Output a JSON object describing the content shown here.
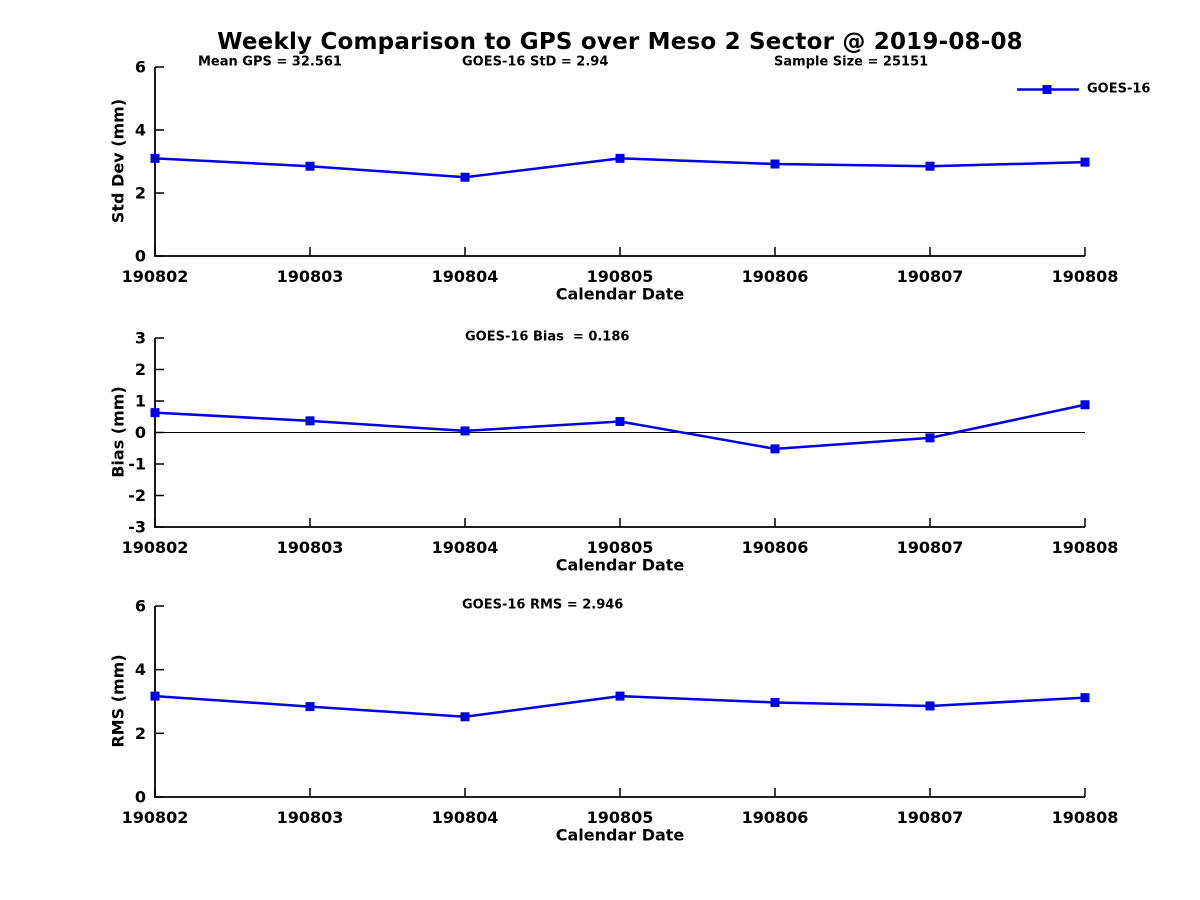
{
  "figure_title": "Weekly Comparison to GPS over Meso 2 Sector @ 2019-08-08",
  "colors": {
    "series_blue": "#0000e6",
    "axis_black": "#000000",
    "background": "#ffffff"
  },
  "legend": {
    "label": "GOES-16"
  },
  "chart_data": [
    {
      "type": "line",
      "annotations": [
        "Mean GPS = 32.561",
        "GOES-16 StD = 2.94",
        "Sample Size = 25151"
      ],
      "categories": [
        "190802",
        "190803",
        "190804",
        "190805",
        "190806",
        "190807",
        "190808"
      ],
      "series": [
        {
          "name": "GOES-16",
          "values": [
            3.1,
            2.85,
            2.5,
            3.1,
            2.92,
            2.85,
            2.98
          ]
        }
      ],
      "xlabel": "Calendar Date",
      "ylabel": "Std Dev (mm)",
      "ylim": [
        0,
        6
      ],
      "yticks": [
        0,
        2,
        4,
        6
      ],
      "zero_line": false,
      "grid": false,
      "legend_visible": true,
      "legend_position": "upper-right"
    },
    {
      "type": "line",
      "annotations": [
        "GOES-16 Bias  = 0.186"
      ],
      "categories": [
        "190802",
        "190803",
        "190804",
        "190805",
        "190806",
        "190807",
        "190808"
      ],
      "series": [
        {
          "name": "GOES-16",
          "values": [
            0.63,
            0.37,
            0.05,
            0.35,
            -0.52,
            -0.17,
            0.88
          ]
        }
      ],
      "xlabel": "Calendar Date",
      "ylabel": "Bias (mm)",
      "ylim": [
        -3,
        3
      ],
      "yticks": [
        3,
        2,
        1,
        0,
        -1,
        -2,
        -3
      ],
      "zero_line": true,
      "grid": false,
      "legend_visible": false
    },
    {
      "type": "line",
      "annotations": [
        "GOES-16 RMS = 2.946"
      ],
      "categories": [
        "190802",
        "190803",
        "190804",
        "190805",
        "190806",
        "190807",
        "190808"
      ],
      "series": [
        {
          "name": "GOES-16",
          "values": [
            3.17,
            2.84,
            2.52,
            3.17,
            2.97,
            2.86,
            3.12
          ]
        }
      ],
      "xlabel": "Calendar Date",
      "ylabel": "RMS (mm)",
      "ylim": [
        0,
        6
      ],
      "yticks": [
        0,
        2,
        4,
        6
      ],
      "zero_line": false,
      "grid": false,
      "legend_visible": false
    }
  ]
}
